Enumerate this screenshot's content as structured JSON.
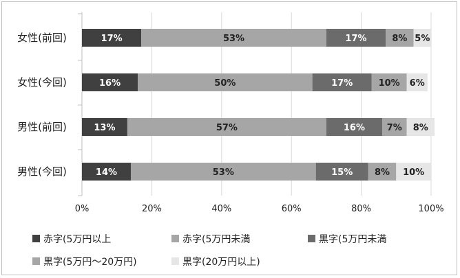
{
  "chart_data": {
    "type": "bar",
    "orientation": "horizontal",
    "stacked": true,
    "title": "",
    "xlabel": "",
    "ylabel": "",
    "xlim": [
      0,
      100
    ],
    "ticks": [
      "0%",
      "20%",
      "40%",
      "60%",
      "80%",
      "100%"
    ],
    "grid": true,
    "legend_position": "bottom",
    "categories": [
      "女性(前回)",
      "女性(今回)",
      "男性(前回)",
      "男性(今回)"
    ],
    "series": [
      {
        "name": "赤字(5万円以上",
        "color": "#404040",
        "label_color": "#ffffff",
        "values": [
          17,
          16,
          13,
          14
        ],
        "labels": [
          "17%",
          "16%",
          "13%",
          "14%"
        ]
      },
      {
        "name": "赤字(5万円未満",
        "color": "#a6a6a6",
        "label_color": "#222222",
        "values": [
          53,
          50,
          57,
          53
        ],
        "labels": [
          "53%",
          "50%",
          "57%",
          "53%"
        ]
      },
      {
        "name": "黒字(5万円未満",
        "color": "#6b6b6b",
        "label_color": "#ffffff",
        "values": [
          17,
          17,
          16,
          15
        ],
        "labels": [
          "17%",
          "17%",
          "16%",
          "15%"
        ]
      },
      {
        "name": "黒字(5万円～20万円)",
        "color": "#a6a6a6",
        "label_color": "#222222",
        "values": [
          8,
          10,
          7,
          8
        ],
        "labels": [
          "8%",
          "10%",
          "7%",
          "8%"
        ]
      },
      {
        "name": "黒字(20万円以上)",
        "color": "#e6e6e6",
        "label_color": "#222222",
        "values": [
          5,
          6,
          8,
          10
        ],
        "labels": [
          "5%",
          "6%",
          "8%",
          "10%"
        ]
      }
    ]
  }
}
